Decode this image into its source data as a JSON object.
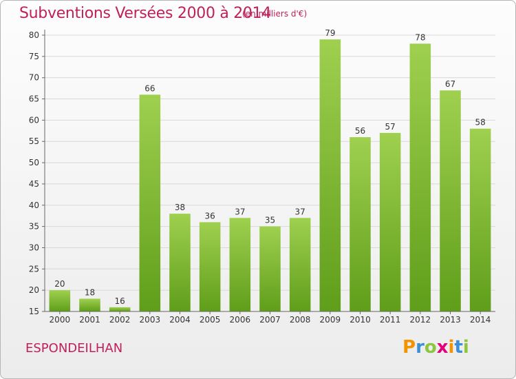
{
  "header": {
    "title": "Subventions Versées 2000 à 2014",
    "subtitle": "(en milliers d'€)"
  },
  "footer": {
    "commune": "ESPONDEILHAN",
    "logo_letters": [
      "P",
      "r",
      "o",
      "x",
      "i",
      "t",
      "i"
    ],
    "logo_colors": [
      "#f29400",
      "#3a8fd6",
      "#8cc63f",
      "#e2007a",
      "#f29400",
      "#3a8fd6",
      "#8cc63f"
    ]
  },
  "chart_data": {
    "type": "bar",
    "title": "Subventions Versées 2000 à 2014",
    "subtitle": "(en milliers d'€)",
    "xlabel": "",
    "ylabel": "",
    "categories": [
      "2000",
      "2001",
      "2002",
      "2003",
      "2004",
      "2005",
      "2006",
      "2007",
      "2008",
      "2009",
      "2010",
      "2011",
      "2012",
      "2013",
      "2014"
    ],
    "values": [
      20,
      18,
      16,
      66,
      38,
      36,
      37,
      35,
      37,
      79,
      56,
      57,
      78,
      67,
      58
    ],
    "ylim": [
      15,
      80
    ],
    "yticks": [
      15,
      20,
      25,
      30,
      35,
      40,
      45,
      50,
      55,
      60,
      65,
      70,
      75,
      80
    ],
    "grid": true,
    "bar_color_top": "#9fd04f",
    "bar_color_bottom": "#5f9e1a",
    "grid_color": "#d8d8d8"
  }
}
